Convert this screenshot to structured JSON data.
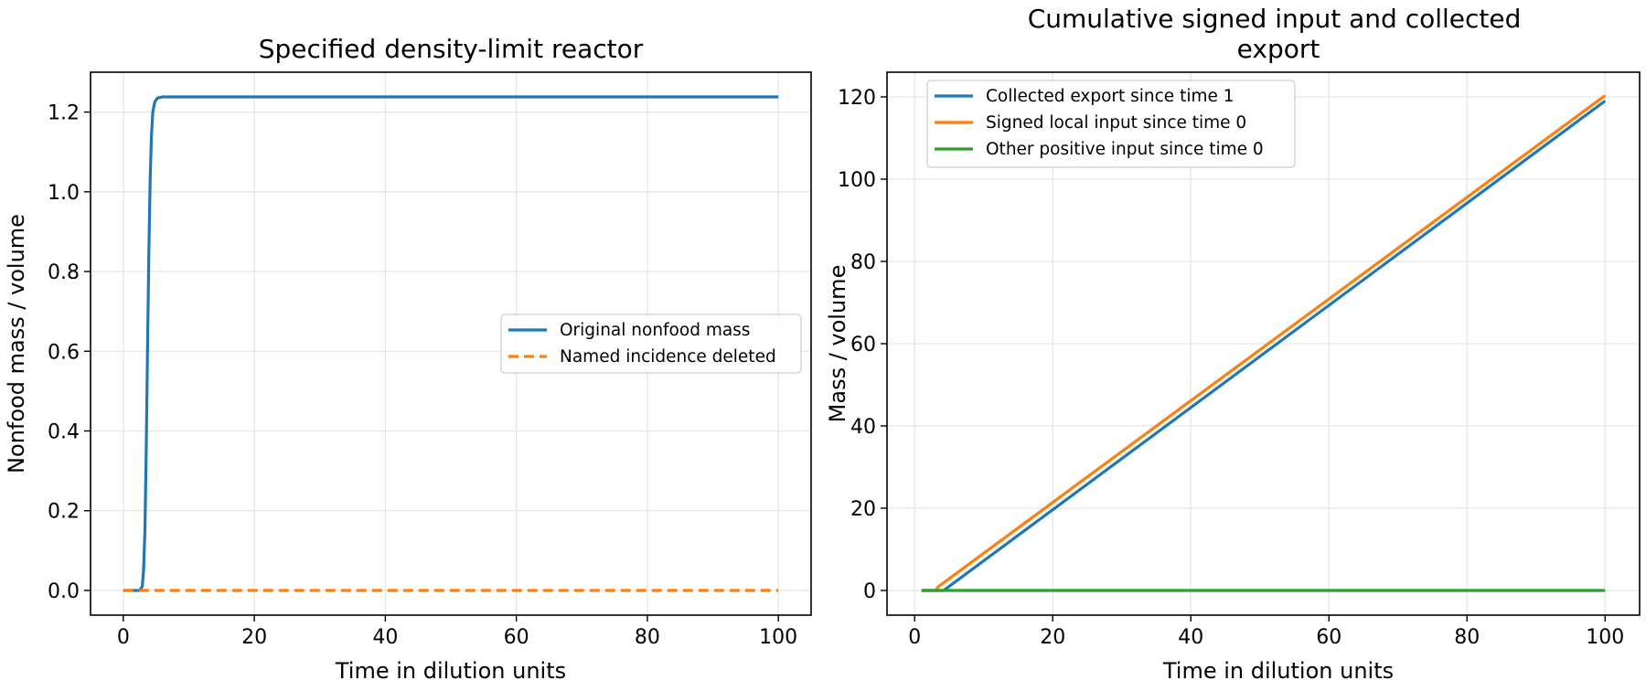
{
  "chart_data": [
    {
      "type": "line",
      "title": "Specified density-limit reactor",
      "xlabel": "Time in dilution units",
      "ylabel": "Nonfood mass / volume",
      "xlim": [
        -5,
        105
      ],
      "ylim": [
        -0.062,
        1.3
      ],
      "xticks": [
        0,
        20,
        40,
        60,
        80,
        100
      ],
      "yticks": [
        0.0,
        0.2,
        0.4,
        0.6,
        0.8,
        1.0,
        1.2
      ],
      "xtick_labels": [
        "0",
        "20",
        "40",
        "60",
        "80",
        "100"
      ],
      "ytick_labels": [
        "0.0",
        "0.2",
        "0.4",
        "0.6",
        "0.8",
        "1.0",
        "1.2"
      ],
      "grid": true,
      "legend_position": "center-right",
      "series": [
        {
          "name": "Original nonfood mass",
          "color": "#1f77b4",
          "style": "solid",
          "x": [
            0,
            2.5,
            2.9,
            3.1,
            3.3,
            3.5,
            3.7,
            3.9,
            4.1,
            4.3,
            4.5,
            4.8,
            5.2,
            6,
            100
          ],
          "y": [
            0,
            0,
            0.01,
            0.05,
            0.15,
            0.35,
            0.6,
            0.85,
            1.03,
            1.14,
            1.2,
            1.225,
            1.235,
            1.238,
            1.238
          ]
        },
        {
          "name": "Named incidence deleted",
          "color": "#ff7f0e",
          "style": "dashed",
          "x": [
            0,
            100
          ],
          "y": [
            0,
            0
          ]
        }
      ]
    },
    {
      "type": "line",
      "title": "Cumulative signed input and collected export",
      "xlabel": "Time in dilution units",
      "ylabel": "Mass / volume",
      "xlim": [
        -4,
        105
      ],
      "ylim": [
        -6,
        126
      ],
      "xticks": [
        0,
        20,
        40,
        60,
        80,
        100
      ],
      "yticks": [
        0,
        20,
        40,
        60,
        80,
        100,
        120
      ],
      "xtick_labels": [
        "0",
        "20",
        "40",
        "60",
        "80",
        "100"
      ],
      "ytick_labels": [
        "0",
        "20",
        "40",
        "60",
        "80",
        "100",
        "120"
      ],
      "grid": true,
      "legend_position": "top-left",
      "series": [
        {
          "name": "Collected export since time 1",
          "color": "#1f77b4",
          "style": "solid",
          "x": [
            1,
            3,
            4.2,
            100
          ],
          "y": [
            0,
            0,
            0,
            119
          ]
        },
        {
          "name": "Signed local input since time 0",
          "color": "#ff7f0e",
          "style": "solid",
          "x": [
            1,
            3,
            3.5,
            100
          ],
          "y": [
            0,
            0,
            1,
            120.3
          ]
        },
        {
          "name": "Other positive input since time 0",
          "color": "#2ca02c",
          "style": "solid",
          "x": [
            1,
            100
          ],
          "y": [
            0,
            0
          ]
        }
      ]
    }
  ]
}
